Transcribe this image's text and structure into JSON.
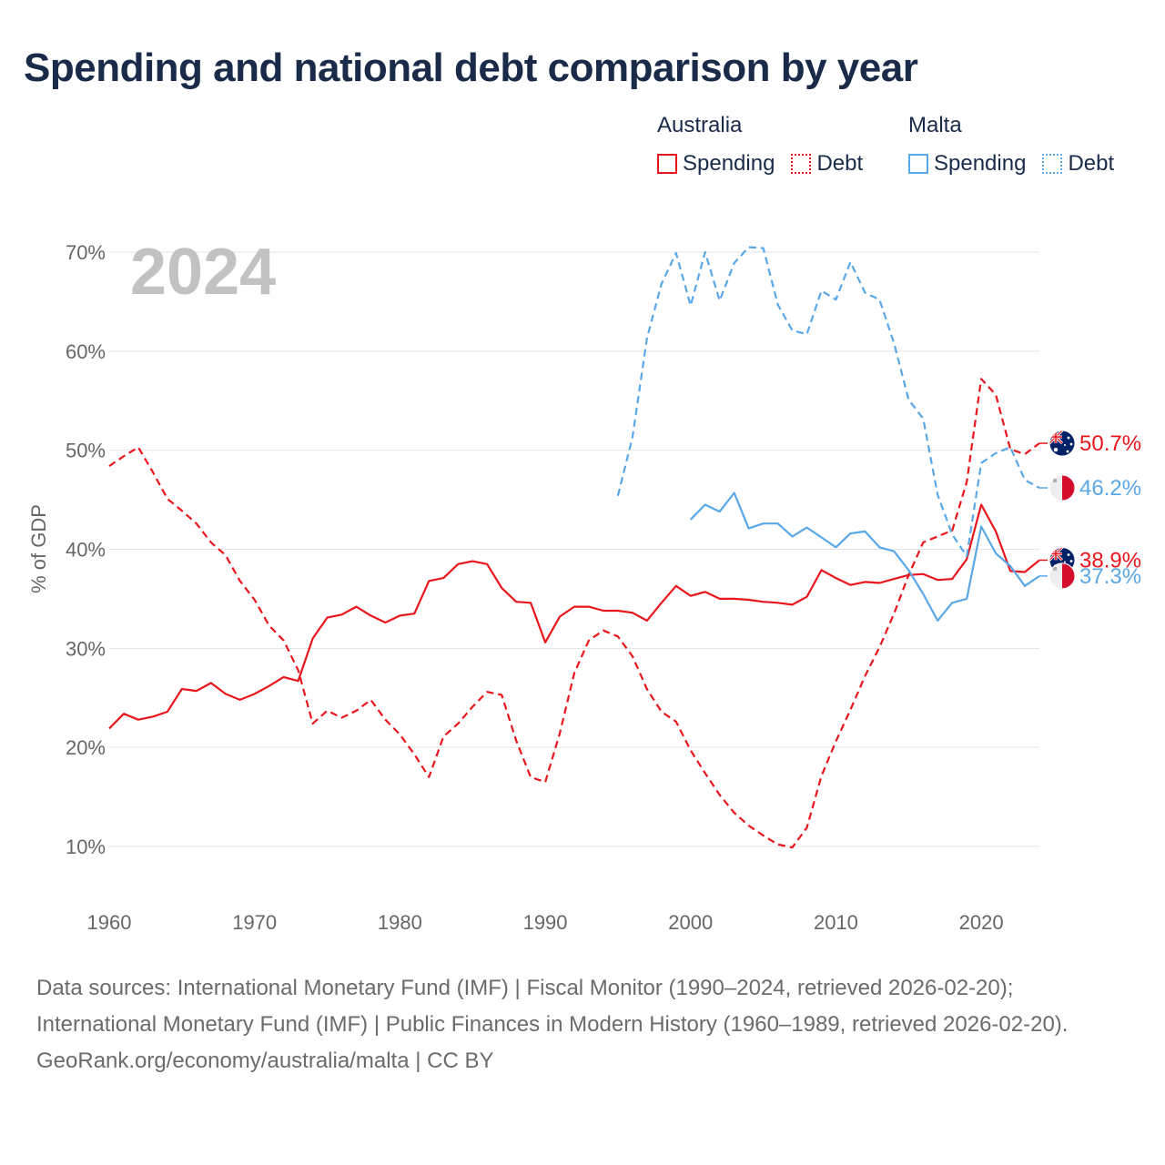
{
  "title": "Spending and national debt comparison by year",
  "legend": {
    "groups": [
      {
        "name": "Australia",
        "items": [
          {
            "label": "Spending",
            "color": "#e8161c",
            "style": "solid"
          },
          {
            "label": "Debt",
            "color": "#e8161c",
            "style": "dotted"
          }
        ]
      },
      {
        "name": "Malta",
        "items": [
          {
            "label": "Spending",
            "color": "#5aa7e8",
            "style": "solid"
          },
          {
            "label": "Debt",
            "color": "#5aa7e8",
            "style": "dotted"
          }
        ]
      }
    ]
  },
  "footer": {
    "sources": "Data sources: International Monetary Fund (IMF) | Fiscal Monitor (1990–2024, retrieved 2026-02-20); International Monetary Fund (IMF) | Public Finances in Modern History (1960–1989, retrieved 2026-02-20).",
    "link": "GeoRank.org/economy/australia/malta | CC BY"
  },
  "chart_data": {
    "type": "line",
    "year_label": "2024",
    "ylabel": "% of GDP",
    "xlabel": "",
    "xlim": [
      1960,
      2024
    ],
    "ylim": [
      10,
      70
    ],
    "xticks": [
      1960,
      1970,
      1980,
      1990,
      2000,
      2010,
      2020
    ],
    "xtick_labels": [
      "1960",
      "1970",
      "1980",
      "1990",
      "2000",
      "2010",
      "2020"
    ],
    "yticks": [
      10,
      20,
      30,
      40,
      50,
      60,
      70
    ],
    "ytick_labels": [
      "10%",
      "20%",
      "30%",
      "40%",
      "50%",
      "60%",
      "70%"
    ],
    "series": [
      {
        "name": "Australia Spending",
        "color": "#e8161c",
        "dash": "solid",
        "flag": "australia",
        "end_label": "38.9%",
        "start_year": 1960,
        "values": [
          21.9,
          23.4,
          22.8,
          23.1,
          23.6,
          25.9,
          25.7,
          26.5,
          25.4,
          24.8,
          25.4,
          26.2,
          27.1,
          26.7,
          31.0,
          33.1,
          33.4,
          34.2,
          33.3,
          32.6,
          33.3,
          33.5,
          36.8,
          37.1,
          38.5,
          38.8,
          38.5,
          36.1,
          34.7,
          34.6,
          30.6,
          33.2,
          34.2,
          34.2,
          33.8,
          33.8,
          33.6,
          32.8,
          34.6,
          36.3,
          35.3,
          35.7,
          35.0,
          35.0,
          34.9,
          34.7,
          34.6,
          34.4,
          35.2,
          37.9,
          37.1,
          36.4,
          36.7,
          36.6,
          37.0,
          37.4,
          37.5,
          36.9,
          37.0,
          39.0,
          44.5,
          41.8,
          37.8,
          37.7,
          38.9
        ]
      },
      {
        "name": "Australia Debt",
        "color": "#e8161c",
        "dash": "dashed",
        "flag": "australia",
        "end_label": "50.7%",
        "start_year": 1960,
        "values": [
          48.4,
          49.4,
          50.3,
          47.8,
          45.1,
          43.9,
          42.6,
          40.7,
          39.4,
          36.8,
          34.9,
          32.3,
          30.8,
          27.8,
          22.4,
          23.7,
          23.0,
          23.7,
          24.8,
          22.8,
          21.3,
          19.3,
          17.0,
          21.1,
          22.4,
          24.1,
          25.6,
          25.3,
          20.7,
          17.0,
          16.5,
          21.4,
          27.5,
          30.8,
          31.8,
          31.2,
          29.2,
          25.9,
          23.6,
          22.6,
          19.7,
          17.4,
          15.2,
          13.4,
          12.1,
          11.1,
          10.2,
          9.9,
          11.9,
          17.1,
          20.6,
          23.8,
          27.2,
          30.1,
          33.5,
          37.4,
          40.7,
          41.3,
          41.9,
          46.8,
          57.2,
          55.6,
          50.1,
          49.6,
          50.7
        ]
      },
      {
        "name": "Malta Spending",
        "color": "#5aa7e8",
        "dash": "solid",
        "flag": "malta",
        "end_label": "37.3%",
        "start_year": 2000,
        "values": [
          43.0,
          44.5,
          43.8,
          45.7,
          42.1,
          42.6,
          42.6,
          41.3,
          42.2,
          41.2,
          40.2,
          41.6,
          41.8,
          40.2,
          39.8,
          37.9,
          35.5,
          32.8,
          34.6,
          35.0,
          42.3,
          39.6,
          38.3,
          36.3,
          37.3
        ]
      },
      {
        "name": "Malta Debt",
        "color": "#5aa7e8",
        "dash": "dashed",
        "flag": "malta",
        "end_label": "46.2%",
        "start_year": 1995,
        "values": [
          45.4,
          51.3,
          61.3,
          66.8,
          69.9,
          64.6,
          70.0,
          65.1,
          68.9,
          70.5,
          70.4,
          64.7,
          62.1,
          61.7,
          66.1,
          65.2,
          69.0,
          65.9,
          65.2,
          60.8,
          55.1,
          53.2,
          45.5,
          41.5,
          39.3,
          48.7,
          49.7,
          50.3,
          47.0,
          46.2
        ]
      }
    ]
  }
}
